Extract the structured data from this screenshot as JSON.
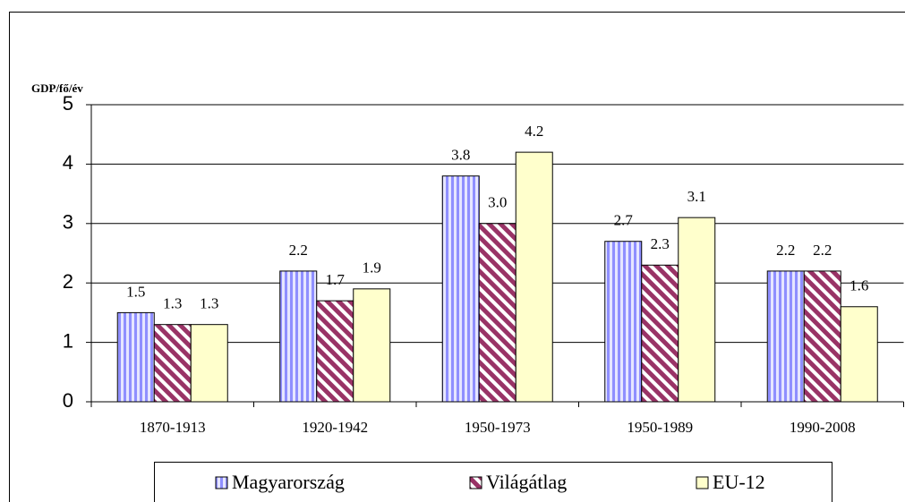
{
  "chart_data": {
    "type": "bar",
    "y_label": "GDP/fő/év",
    "categories": [
      "1870-1913",
      "1920-1942",
      "1950-1973",
      "1950-1989",
      "1990-2008"
    ],
    "series": [
      {
        "name": "Magyarország",
        "color": "#8f8fff",
        "values": [
          1.5,
          2.2,
          3.8,
          2.7,
          2.2
        ],
        "value_labels": [
          "1.5",
          "2.2",
          "3.8",
          "2.7",
          "2.2"
        ]
      },
      {
        "name": "Világátlag",
        "color": "#993366",
        "values": [
          1.3,
          1.7,
          3.0,
          2.3,
          2.2
        ],
        "value_labels": [
          "1.3",
          "1.7",
          "3.0",
          "2.3",
          "2.2"
        ]
      },
      {
        "name": "EU-12",
        "color": "#ffffcc",
        "values": [
          1.3,
          1.9,
          4.2,
          3.1,
          1.6
        ],
        "value_labels": [
          "1.3",
          "1.9",
          "4.2",
          "3.1",
          "1.6"
        ]
      }
    ],
    "ylim": [
      0,
      5
    ],
    "yticks": [
      0,
      1,
      2,
      3,
      4,
      5
    ],
    "grid": true
  }
}
